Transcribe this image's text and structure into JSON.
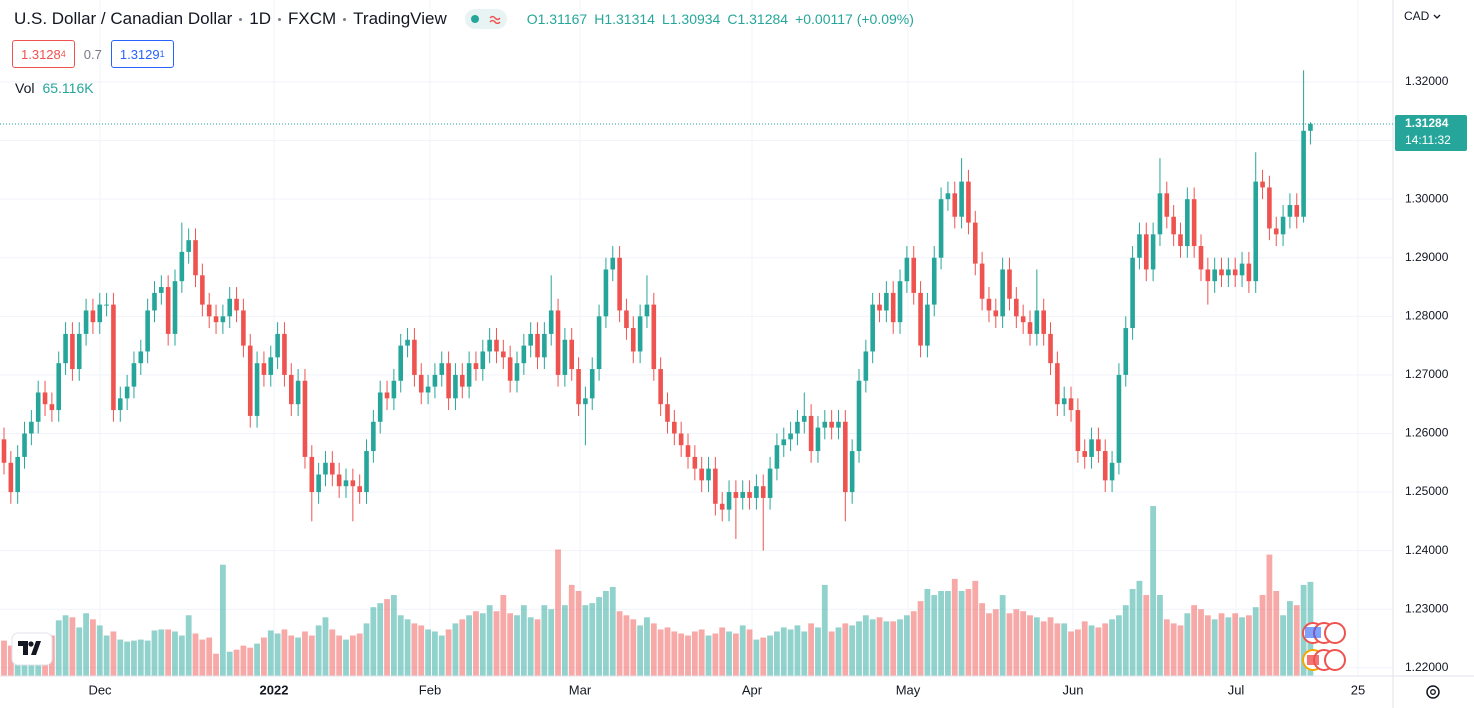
{
  "header": {
    "title_parts": [
      "U.S. Dollar / Canadian Dollar",
      "1D",
      "FXCM",
      "TradingView"
    ],
    "ohlc_prefixes": [
      "O",
      "H",
      "L",
      "C"
    ],
    "change": "+0.00117 (+0.09%)",
    "bid": {
      "main": "1.3128",
      "pip": "4"
    },
    "spread": "0.7",
    "ask": {
      "main": "1.3129",
      "pip": "1"
    },
    "currency": "CAD",
    "countdown": "14:11:32"
  },
  "chart_data": {
    "type": "candlestick",
    "up_color": "#26a69a",
    "down_color": "#ef5350",
    "volume_title": "Vol",
    "volume_last_label": "65.116K",
    "x_labels": [
      "Dec",
      "2022",
      "Feb",
      "Mar",
      "Apr",
      "May",
      "Jun",
      "Jul",
      "25"
    ],
    "ylim": [
      1.2186,
      1.334
    ],
    "yticks": [
      {
        "value": 1.22,
        "label": "1.22000"
      },
      {
        "value": 1.23,
        "label": "1.23000"
      },
      {
        "value": 1.24,
        "label": "1.24000"
      },
      {
        "value": 1.25,
        "label": "1.25000"
      },
      {
        "value": 1.26,
        "label": "1.26000"
      },
      {
        "value": 1.27,
        "label": "1.27000"
      },
      {
        "value": 1.28,
        "label": "1.28000"
      },
      {
        "value": 1.29,
        "label": "1.29000"
      },
      {
        "value": 1.3,
        "label": "1.30000"
      },
      {
        "value": 1.31,
        "label": "1.31000"
      },
      {
        "value": 1.32,
        "label": "1.32000"
      }
    ],
    "grid": true,
    "open": [
      1.259,
      1.255,
      1.25,
      1.256,
      1.26,
      1.262,
      1.267,
      1.265,
      1.264,
      1.272,
      1.277,
      1.271,
      1.277,
      1.281,
      1.279,
      1.282,
      1.282,
      1.264,
      1.266,
      1.268,
      1.272,
      1.274,
      1.281,
      1.284,
      1.285,
      1.277,
      1.286,
      1.291,
      1.293,
      1.287,
      1.282,
      1.28,
      1.279,
      1.28,
      1.283,
      1.281,
      1.275,
      1.263,
      1.272,
      1.27,
      1.273,
      1.277,
      1.27,
      1.265,
      1.269,
      1.256,
      1.25,
      1.253,
      1.255,
      1.253,
      1.251,
      1.252,
      1.251,
      1.25,
      1.257,
      1.262,
      1.267,
      1.266,
      1.269,
      1.275,
      1.276,
      1.27,
      1.267,
      1.268,
      1.27,
      1.272,
      1.266,
      1.27,
      1.268,
      1.272,
      1.271,
      1.274,
      1.276,
      1.274,
      1.273,
      1.269,
      1.272,
      1.275,
      1.277,
      1.273,
      1.277,
      1.281,
      1.27,
      1.276,
      1.271,
      1.265,
      1.266,
      1.271,
      1.28,
      1.288,
      1.29,
      1.281,
      1.278,
      1.274,
      1.28,
      1.282,
      1.271,
      1.265,
      1.262,
      1.26,
      1.258,
      1.256,
      1.254,
      1.252,
      1.254,
      1.248,
      1.247,
      1.25,
      1.249,
      1.25,
      1.249,
      1.251,
      1.249,
      1.254,
      1.258,
      1.259,
      1.26,
      1.262,
      1.263,
      1.257,
      1.261,
      1.262,
      1.261,
      1.262,
      1.25,
      1.257,
      1.269,
      1.274,
      1.282,
      1.281,
      1.284,
      1.279,
      1.286,
      1.29,
      1.284,
      1.275,
      1.282,
      1.29,
      1.3,
      1.301,
      1.297,
      1.303,
      1.296,
      1.289,
      1.283,
      1.281,
      1.28,
      1.288,
      1.283,
      1.28,
      1.279,
      1.277,
      1.281,
      1.277,
      1.272,
      1.265,
      1.266,
      1.264,
      1.257,
      1.256,
      1.259,
      1.257,
      1.252,
      1.255,
      1.27,
      1.278,
      1.29,
      1.294,
      1.288,
      1.294,
      1.301,
      1.297,
      1.294,
      1.292,
      1.3,
      1.292,
      1.288,
      1.286,
      1.288,
      1.287,
      1.288,
      1.287,
      1.289,
      1.286,
      1.303,
      1.302,
      1.295,
      1.294,
      1.297,
      1.299,
      1.297,
      1.31167
    ],
    "high": [
      1.261,
      1.257,
      1.258,
      1.262,
      1.264,
      1.269,
      1.269,
      1.267,
      1.274,
      1.279,
      1.279,
      1.279,
      1.283,
      1.283,
      1.284,
      1.284,
      1.284,
      1.268,
      1.27,
      1.274,
      1.276,
      1.283,
      1.286,
      1.287,
      1.287,
      1.288,
      1.296,
      1.295,
      1.295,
      1.289,
      1.284,
      1.282,
      1.282,
      1.285,
      1.285,
      1.283,
      1.277,
      1.274,
      1.274,
      1.275,
      1.279,
      1.279,
      1.272,
      1.271,
      1.271,
      1.258,
      1.255,
      1.257,
      1.257,
      1.255,
      1.254,
      1.254,
      1.253,
      1.259,
      1.264,
      1.269,
      1.269,
      1.271,
      1.277,
      1.278,
      1.278,
      1.272,
      1.27,
      1.272,
      1.274,
      1.274,
      1.272,
      1.272,
      1.274,
      1.274,
      1.276,
      1.278,
      1.278,
      1.276,
      1.275,
      1.274,
      1.277,
      1.279,
      1.279,
      1.279,
      1.287,
      1.283,
      1.278,
      1.278,
      1.273,
      1.268,
      1.273,
      1.282,
      1.29,
      1.292,
      1.292,
      1.283,
      1.28,
      1.282,
      1.287,
      1.284,
      1.273,
      1.267,
      1.264,
      1.262,
      1.26,
      1.258,
      1.256,
      1.256,
      1.256,
      1.25,
      1.252,
      1.252,
      1.252,
      1.252,
      1.253,
      1.253,
      1.256,
      1.26,
      1.261,
      1.262,
      1.264,
      1.267,
      1.265,
      1.263,
      1.264,
      1.264,
      1.264,
      1.264,
      1.259,
      1.271,
      1.276,
      1.284,
      1.284,
      1.286,
      1.286,
      1.288,
      1.292,
      1.292,
      1.286,
      1.284,
      1.292,
      1.302,
      1.303,
      1.303,
      1.307,
      1.305,
      1.298,
      1.291,
      1.285,
      1.283,
      1.29,
      1.29,
      1.285,
      1.282,
      1.281,
      1.288,
      1.283,
      1.279,
      1.274,
      1.268,
      1.268,
      1.266,
      1.259,
      1.261,
      1.261,
      1.259,
      1.257,
      1.272,
      1.28,
      1.292,
      1.296,
      1.296,
      1.296,
      1.307,
      1.303,
      1.299,
      1.296,
      1.302,
      1.302,
      1.294,
      1.29,
      1.29,
      1.29,
      1.29,
      1.29,
      1.291,
      1.291,
      1.308,
      1.305,
      1.304,
      1.297,
      1.299,
      1.301,
      1.301,
      1.322,
      1.31314
    ],
    "low": [
      1.253,
      1.248,
      1.248,
      1.254,
      1.258,
      1.26,
      1.263,
      1.262,
      1.262,
      1.27,
      1.269,
      1.269,
      1.275,
      1.277,
      1.277,
      1.28,
      1.262,
      1.262,
      1.264,
      1.266,
      1.27,
      1.272,
      1.279,
      1.282,
      1.275,
      1.275,
      1.284,
      1.289,
      1.285,
      1.28,
      1.278,
      1.277,
      1.277,
      1.278,
      1.279,
      1.273,
      1.261,
      1.261,
      1.268,
      1.268,
      1.271,
      1.268,
      1.263,
      1.263,
      1.254,
      1.245,
      1.248,
      1.251,
      1.251,
      1.249,
      1.249,
      1.245,
      1.248,
      1.248,
      1.255,
      1.26,
      1.264,
      1.264,
      1.267,
      1.273,
      1.268,
      1.265,
      1.265,
      1.266,
      1.268,
      1.264,
      1.264,
      1.266,
      1.266,
      1.269,
      1.269,
      1.272,
      1.272,
      1.271,
      1.267,
      1.267,
      1.27,
      1.273,
      1.271,
      1.271,
      1.275,
      1.268,
      1.268,
      1.269,
      1.263,
      1.258,
      1.264,
      1.269,
      1.278,
      1.286,
      1.279,
      1.276,
      1.272,
      1.272,
      1.278,
      1.269,
      1.263,
      1.26,
      1.258,
      1.256,
      1.254,
      1.252,
      1.25,
      1.25,
      1.246,
      1.245,
      1.245,
      1.242,
      1.247,
      1.247,
      1.247,
      1.24,
      1.247,
      1.252,
      1.256,
      1.257,
      1.258,
      1.26,
      1.255,
      1.255,
      1.259,
      1.259,
      1.259,
      1.245,
      1.248,
      1.255,
      1.267,
      1.272,
      1.279,
      1.279,
      1.277,
      1.277,
      1.284,
      1.282,
      1.273,
      1.273,
      1.28,
      1.288,
      1.298,
      1.295,
      1.295,
      1.294,
      1.287,
      1.281,
      1.279,
      1.278,
      1.278,
      1.281,
      1.278,
      1.277,
      1.275,
      1.275,
      1.275,
      1.27,
      1.263,
      1.263,
      1.262,
      1.255,
      1.254,
      1.254,
      1.255,
      1.25,
      1.25,
      1.253,
      1.268,
      1.276,
      1.288,
      1.286,
      1.286,
      1.292,
      1.295,
      1.292,
      1.29,
      1.29,
      1.29,
      1.286,
      1.282,
      1.284,
      1.285,
      1.285,
      1.285,
      1.285,
      1.284,
      1.284,
      1.3,
      1.293,
      1.292,
      1.292,
      1.295,
      1.295,
      1.296,
      1.30934
    ],
    "close": [
      1.255,
      1.25,
      1.256,
      1.26,
      1.262,
      1.267,
      1.265,
      1.264,
      1.272,
      1.277,
      1.271,
      1.277,
      1.281,
      1.279,
      1.282,
      1.282,
      1.264,
      1.266,
      1.268,
      1.272,
      1.274,
      1.281,
      1.284,
      1.285,
      1.277,
      1.286,
      1.291,
      1.293,
      1.287,
      1.282,
      1.28,
      1.279,
      1.28,
      1.283,
      1.281,
      1.275,
      1.263,
      1.272,
      1.27,
      1.273,
      1.277,
      1.27,
      1.265,
      1.269,
      1.256,
      1.25,
      1.253,
      1.255,
      1.253,
      1.251,
      1.252,
      1.251,
      1.25,
      1.257,
      1.262,
      1.267,
      1.266,
      1.269,
      1.275,
      1.276,
      1.27,
      1.267,
      1.268,
      1.27,
      1.272,
      1.266,
      1.27,
      1.268,
      1.272,
      1.271,
      1.274,
      1.276,
      1.274,
      1.273,
      1.269,
      1.272,
      1.275,
      1.277,
      1.273,
      1.277,
      1.281,
      1.27,
      1.276,
      1.271,
      1.265,
      1.266,
      1.271,
      1.28,
      1.288,
      1.29,
      1.281,
      1.278,
      1.274,
      1.28,
      1.282,
      1.271,
      1.265,
      1.262,
      1.26,
      1.258,
      1.256,
      1.254,
      1.252,
      1.254,
      1.248,
      1.247,
      1.25,
      1.249,
      1.25,
      1.249,
      1.251,
      1.249,
      1.254,
      1.258,
      1.259,
      1.26,
      1.262,
      1.263,
      1.257,
      1.261,
      1.262,
      1.261,
      1.262,
      1.25,
      1.257,
      1.269,
      1.274,
      1.282,
      1.281,
      1.284,
      1.279,
      1.286,
      1.29,
      1.284,
      1.275,
      1.282,
      1.29,
      1.3,
      1.301,
      1.297,
      1.303,
      1.296,
      1.289,
      1.283,
      1.281,
      1.28,
      1.288,
      1.283,
      1.28,
      1.279,
      1.277,
      1.281,
      1.277,
      1.272,
      1.265,
      1.266,
      1.264,
      1.257,
      1.256,
      1.259,
      1.257,
      1.252,
      1.255,
      1.27,
      1.278,
      1.29,
      1.294,
      1.288,
      1.294,
      1.301,
      1.297,
      1.294,
      1.292,
      1.3,
      1.292,
      1.288,
      1.286,
      1.288,
      1.287,
      1.288,
      1.287,
      1.289,
      1.286,
      1.303,
      1.302,
      1.295,
      1.294,
      1.297,
      1.299,
      1.297,
      1.31167,
      1.31284
    ],
    "volume": [
      24500,
      21000,
      25200,
      26600,
      22400,
      28000,
      29400,
      28000,
      38500,
      42000,
      40600,
      33600,
      43400,
      39200,
      35000,
      28000,
      30800,
      25200,
      23800,
      24500,
      25200,
      24500,
      31500,
      32200,
      32200,
      30800,
      28000,
      42000,
      29400,
      25200,
      26600,
      15400,
      77000,
      16800,
      18200,
      21000,
      19600,
      22400,
      26600,
      31500,
      29400,
      32200,
      28000,
      26600,
      30800,
      28000,
      35000,
      40600,
      32200,
      28000,
      25200,
      28000,
      29400,
      36400,
      47600,
      50400,
      53200,
      56000,
      42000,
      39200,
      36400,
      35000,
      32200,
      30800,
      28000,
      32200,
      36400,
      39200,
      42000,
      44800,
      43400,
      49000,
      44800,
      56000,
      43400,
      42000,
      49000,
      40600,
      39200,
      49000,
      46200,
      87500,
      49000,
      63000,
      58800,
      49000,
      50400,
      54600,
      58800,
      61600,
      44800,
      42000,
      39200,
      35000,
      40600,
      36400,
      32200,
      33600,
      30800,
      29400,
      28000,
      30800,
      32200,
      28000,
      29400,
      33600,
      30800,
      29400,
      35000,
      32200,
      25200,
      26600,
      28000,
      30800,
      33600,
      32200,
      35000,
      30800,
      36400,
      33600,
      63000,
      30800,
      33600,
      36400,
      35000,
      37800,
      42000,
      39200,
      40600,
      37800,
      37800,
      39200,
      42000,
      44800,
      51800,
      60200,
      56000,
      58800,
      58800,
      67200,
      58800,
      60200,
      65800,
      50400,
      43400,
      46200,
      56000,
      43400,
      46200,
      44800,
      42000,
      40600,
      37800,
      40600,
      36400,
      36400,
      30800,
      32200,
      37800,
      35000,
      33600,
      36400,
      39200,
      42000,
      49000,
      60200,
      65800,
      56000,
      117600,
      56000,
      39200,
      36400,
      35000,
      43400,
      49000,
      46200,
      42000,
      39200,
      43400,
      40600,
      43400,
      40600,
      42000,
      47600,
      56000,
      84000,
      58800,
      42000,
      51800,
      49000,
      63000,
      65116
    ]
  }
}
